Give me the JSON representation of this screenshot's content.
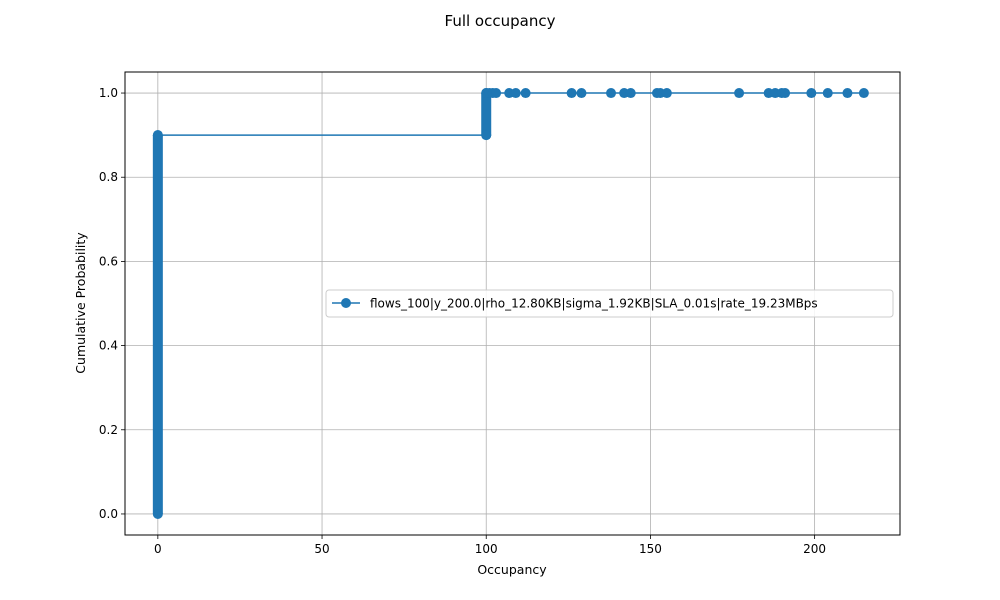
{
  "chart_data": {
    "type": "line",
    "title": "Full occupancy",
    "xlabel": "Occupancy",
    "ylabel": "Cumulative Probability",
    "xlim": [
      -10,
      226
    ],
    "ylim": [
      -0.05,
      1.05
    ],
    "xticks": [
      0,
      50,
      100,
      150,
      200
    ],
    "yticks": [
      0.0,
      0.2,
      0.4,
      0.6,
      0.8,
      1.0
    ],
    "xtick_labels": [
      "0",
      "50",
      "100",
      "150",
      "200"
    ],
    "ytick_labels": [
      "0.0",
      "0.2",
      "0.4",
      "0.6",
      "0.8",
      "1.0"
    ],
    "grid": true,
    "legend_position": "center-right",
    "series": [
      {
        "name": "flows_100|y_200.0|rho_12.80KB|sigma_1.92KB|SLA_0.01s|rate_19.23MBps",
        "color": "#1f77b4",
        "marker": "circle",
        "clusters": [
          {
            "x": 0,
            "y_from": 0.0,
            "y_to": 0.9
          },
          {
            "x": 100,
            "y_from": 0.9,
            "y_to": 1.0
          }
        ],
        "points": [
          {
            "x": 0,
            "y": 0.9
          },
          {
            "x": 100,
            "y": 0.9
          },
          {
            "x": 100,
            "y": 1.0
          },
          {
            "x": 101,
            "y": 1.0
          },
          {
            "x": 102,
            "y": 1.0
          },
          {
            "x": 103,
            "y": 1.0
          },
          {
            "x": 107,
            "y": 1.0
          },
          {
            "x": 109,
            "y": 1.0
          },
          {
            "x": 112,
            "y": 1.0
          },
          {
            "x": 126,
            "y": 1.0
          },
          {
            "x": 129,
            "y": 1.0
          },
          {
            "x": 138,
            "y": 1.0
          },
          {
            "x": 142,
            "y": 1.0
          },
          {
            "x": 144,
            "y": 1.0
          },
          {
            "x": 152,
            "y": 1.0
          },
          {
            "x": 153,
            "y": 1.0
          },
          {
            "x": 155,
            "y": 1.0
          },
          {
            "x": 177,
            "y": 1.0
          },
          {
            "x": 186,
            "y": 1.0
          },
          {
            "x": 188,
            "y": 1.0
          },
          {
            "x": 190,
            "y": 1.0
          },
          {
            "x": 191,
            "y": 1.0
          },
          {
            "x": 199,
            "y": 1.0
          },
          {
            "x": 204,
            "y": 1.0
          },
          {
            "x": 210,
            "y": 1.0
          },
          {
            "x": 215,
            "y": 1.0
          }
        ]
      }
    ]
  }
}
